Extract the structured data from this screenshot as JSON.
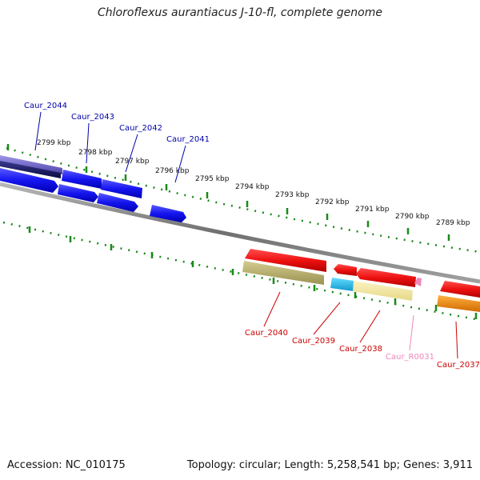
{
  "title": "Chloroflexus aurantiacus J-10-fl, complete genome",
  "footer": {
    "accession": "Accession: NC_010175",
    "summary": "Topology: circular; Length: 5,258,541 bp; Genes: 3,911"
  },
  "ruler": {
    "ticks": [
      {
        "label": "2799 kbp",
        "kbp": 2799
      },
      {
        "label": "2798 kbp",
        "kbp": 2798
      },
      {
        "label": "2797 kbp",
        "kbp": 2797
      },
      {
        "label": "2796 kbp",
        "kbp": 2796
      },
      {
        "label": "2795 kbp",
        "kbp": 2795
      },
      {
        "label": "2794 kbp",
        "kbp": 2794
      },
      {
        "label": "2793 kbp",
        "kbp": 2793
      },
      {
        "label": "2792 kbp",
        "kbp": 2792
      },
      {
        "label": "2791 kbp",
        "kbp": 2791
      },
      {
        "label": "2790 kbp",
        "kbp": 2790
      },
      {
        "label": "2789 kbp",
        "kbp": 2789
      }
    ]
  },
  "genes": [
    {
      "label": "Caur_2044",
      "color": "#0000aa",
      "strand": "top"
    },
    {
      "label": "Caur_2043",
      "color": "#0000aa",
      "strand": "top"
    },
    {
      "label": "Caur_2042",
      "color": "#0000aa",
      "strand": "top"
    },
    {
      "label": "Caur_2041",
      "color": "#0000aa",
      "strand": "top"
    },
    {
      "label": "Caur_2040",
      "color": "#cc0000",
      "strand": "bottom"
    },
    {
      "label": "Caur_2039",
      "color": "#cc0000",
      "strand": "bottom"
    },
    {
      "label": "Caur_2038",
      "color": "#cc0000",
      "strand": "bottom"
    },
    {
      "label": "Caur_R0031",
      "color": "#ee88bb",
      "strand": "bottom"
    },
    {
      "label": "Caur_2037",
      "color": "#cc0000",
      "strand": "bottom"
    }
  ],
  "colors": {
    "forward_cds": "#1515f0",
    "reverse_cds": "#ee1111",
    "backbone": "#808080",
    "ticks": "#1a8a1a",
    "cog_gold": "#b8b070",
    "cog_pale_yellow": "#f2e6a0",
    "cog_cyan": "#22bbee",
    "cog_orange": "#ff8c00",
    "cog_purple": "#7766cc",
    "rna": "#ee88bb"
  }
}
